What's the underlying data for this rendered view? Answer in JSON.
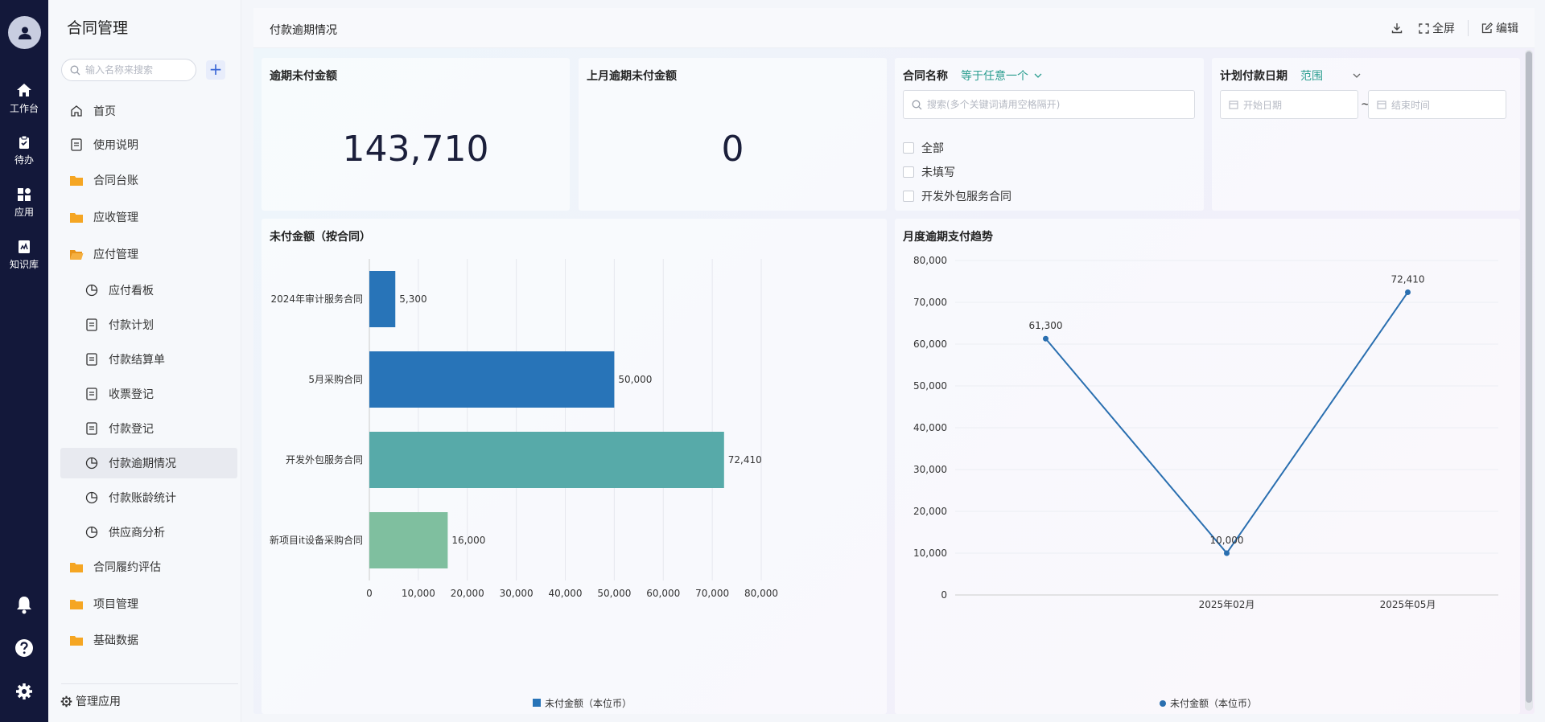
{
  "rail": {
    "items": [
      {
        "label": "工作台",
        "icon": "home-icon"
      },
      {
        "label": "待办",
        "icon": "clipboard-icon"
      },
      {
        "label": "应用",
        "icon": "apps-icon"
      },
      {
        "label": "知识库",
        "icon": "book-icon"
      }
    ],
    "bottom": [
      "bell-icon",
      "help-icon",
      "settings-icon"
    ]
  },
  "sidebar": {
    "title": "合同管理",
    "search_placeholder": "输入名称来搜索",
    "add_label": "+",
    "items": [
      {
        "label": "首页",
        "icon": "home-outline-icon"
      },
      {
        "label": "使用说明",
        "icon": "doc-icon"
      },
      {
        "label": "合同台账",
        "icon": "folder-icon"
      },
      {
        "label": "应收管理",
        "icon": "folder-icon"
      },
      {
        "label": "应付管理",
        "icon": "folder-open-icon"
      },
      {
        "label": "应付看板",
        "icon": "pie-icon"
      },
      {
        "label": "付款计划",
        "icon": "doc-icon"
      },
      {
        "label": "付款结算单",
        "icon": "doc-icon"
      },
      {
        "label": "收票登记",
        "icon": "doc-icon"
      },
      {
        "label": "付款登记",
        "icon": "doc-icon"
      },
      {
        "label": "付款逾期情况",
        "icon": "pie-icon"
      },
      {
        "label": "付款账龄统计",
        "icon": "pie-icon"
      },
      {
        "label": "供应商分析",
        "icon": "pie-icon"
      },
      {
        "label": "合同履约评估",
        "icon": "folder-icon"
      },
      {
        "label": "项目管理",
        "icon": "folder-icon"
      },
      {
        "label": "基础数据",
        "icon": "folder-icon"
      }
    ],
    "active_index": 10,
    "manage_label": "管理应用"
  },
  "topbar": {
    "title": "付款逾期情况",
    "fullscreen_label": "全屏",
    "edit_label": "编辑"
  },
  "kpis": [
    {
      "title": "逾期未付金额",
      "value": "143,710"
    },
    {
      "title": "上月逾期未付金额",
      "value": "0"
    }
  ],
  "filter_contract": {
    "label": "合同名称",
    "mode": "等于任意一个",
    "placeholder": "搜索(多个关键词请用空格隔开)",
    "options": [
      "全部",
      "未填写",
      "开发外包服务合同"
    ]
  },
  "filter_date": {
    "label": "计划付款日期",
    "mode": "范围",
    "start_placeholder": "开始日期",
    "separator": "~",
    "end_placeholder": "结束时间"
  },
  "colors": {
    "accent_teal": "#2a9d8f",
    "bar_blue": "#2874b8",
    "bar_teal": "#57aaa9",
    "bar_green": "#7fbf9f",
    "line_blue": "#2a6fb0",
    "rail_bg": "#13183a"
  },
  "chart_data": [
    {
      "type": "bar",
      "orientation": "horizontal",
      "title": "未付金额（按合同）",
      "categories": [
        "2024年审计服务合同",
        "5月采购合同",
        "开发外包服务合同",
        "新项目it设备采购合同"
      ],
      "series": [
        {
          "name": "未付金额（本位币）",
          "values": [
            5300,
            50000,
            72410,
            16000
          ]
        }
      ],
      "value_labels": [
        "5,300",
        "50,000",
        "72,410",
        "16,000"
      ],
      "xlim": [
        0,
        80000
      ],
      "xticks": [
        "0",
        "10,000",
        "20,000",
        "30,000",
        "40,000",
        "50,000",
        "60,000",
        "70,000",
        "80,000"
      ],
      "grid": true,
      "legend": "bottom"
    },
    {
      "type": "line",
      "title": "月度逾期支付趋势",
      "x_ticks": [
        "2025年02月",
        "2025年05月"
      ],
      "series": [
        {
          "name": "未付金额（本位币）",
          "values": [
            61300,
            10000,
            72410
          ]
        }
      ],
      "value_labels": [
        "61,300",
        "10,000",
        "72,410"
      ],
      "ylim": [
        0,
        80000
      ],
      "yticks": [
        "0",
        "10,000",
        "20,000",
        "30,000",
        "40,000",
        "50,000",
        "60,000",
        "70,000",
        "80,000"
      ],
      "grid": true,
      "legend": "bottom"
    }
  ]
}
